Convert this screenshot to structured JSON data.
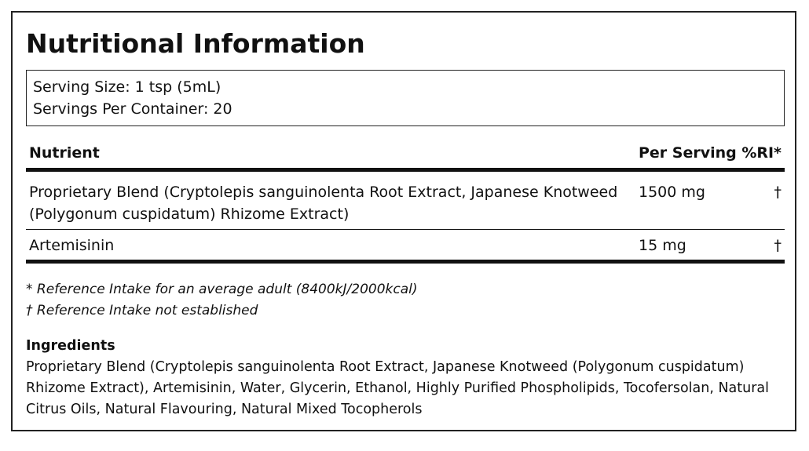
{
  "title": "Nutritional Information",
  "serving": {
    "size": "Serving Size: 1 tsp (5mL)",
    "per_container": "Servings Per Container: 20"
  },
  "table": {
    "header": [
      "Nutrient",
      "Per Serving",
      "%RI*"
    ],
    "rows": [
      [
        "Proprietary Blend (Cryptolepis sanguinolenta Root Extract, Japanese Knotweed (Polygonum cuspidatum) Rhizome Extract)",
        "1500 mg",
        "†"
      ],
      [
        "Artemisinin",
        "15 mg",
        "†"
      ]
    ]
  },
  "footnotes": [
    "* Reference Intake for an average adult (8400kJ/2000kcal)",
    "† Reference Intake not established"
  ],
  "ingredients": {
    "heading": "Ingredients",
    "text": "Proprietary Blend (Cryptolepis sanguinolenta Root Extract, Japanese Knotweed (Polygonum cuspidatum) Rhizome Extract), Artemisinin, Water, Glycerin, Ethanol, Highly Purified Phospholipids, Tocofersolan, Natural Citrus Oils, Natural Flavouring, Natural Mixed Tocopherols"
  }
}
